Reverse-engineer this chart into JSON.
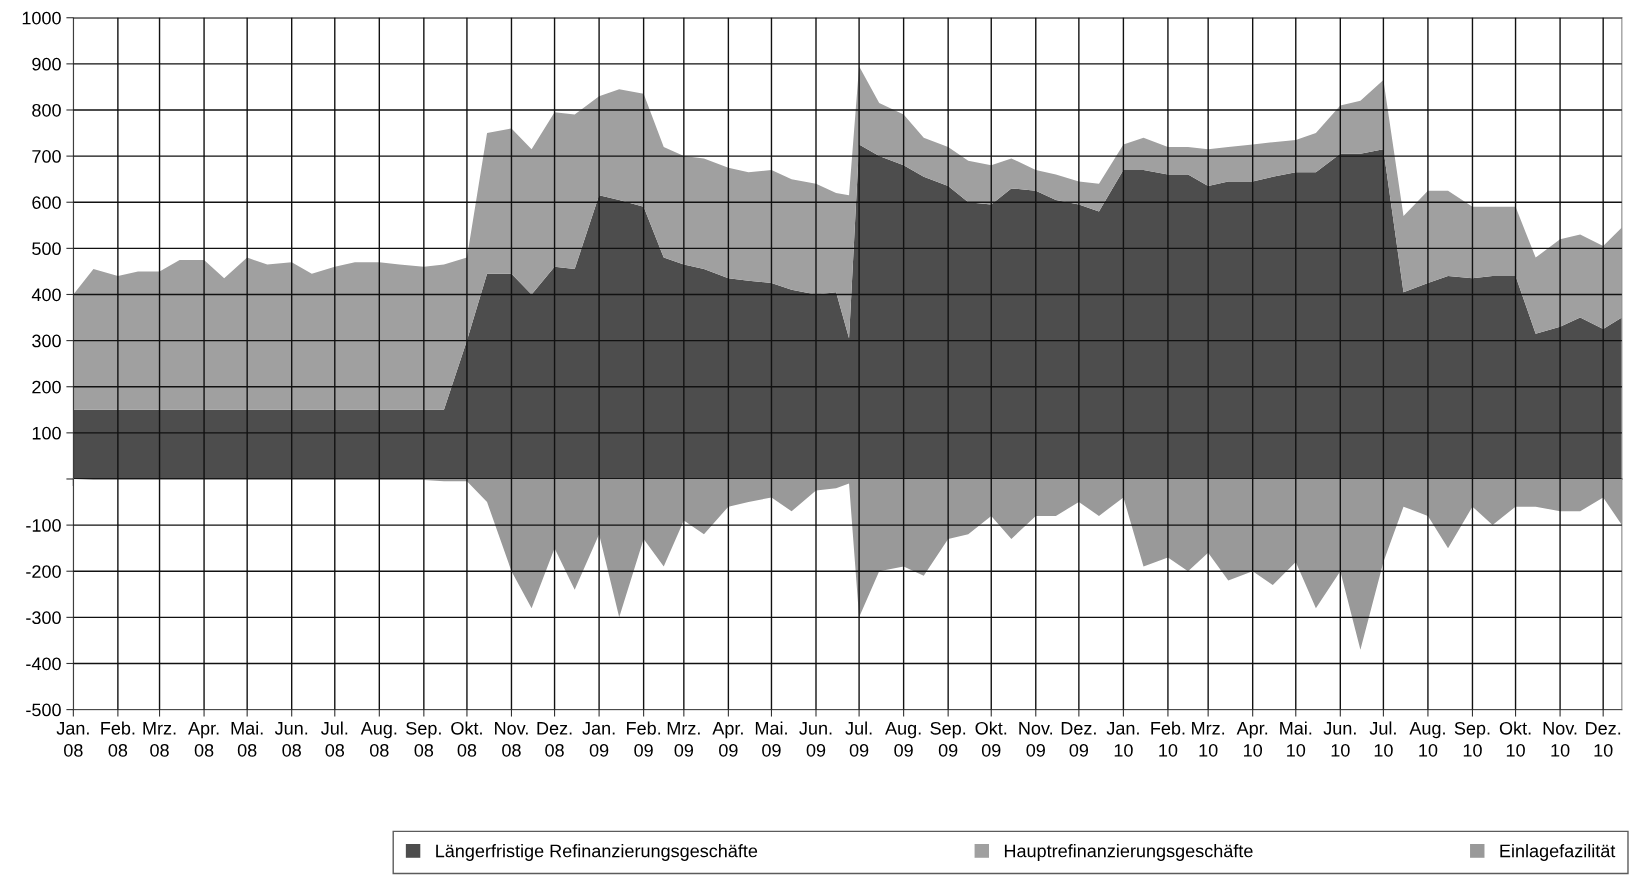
{
  "chart_data": [
    {
      "type": "area",
      "stacked": true,
      "x": [
        "2008-01-01",
        "2008-01-15",
        "2008-02-01",
        "2008-02-15",
        "2008-03-01",
        "2008-03-15",
        "2008-04-01",
        "2008-04-15",
        "2008-05-01",
        "2008-05-15",
        "2008-06-01",
        "2008-06-15",
        "2008-07-01",
        "2008-07-15",
        "2008-08-01",
        "2008-08-15",
        "2008-09-01",
        "2008-09-15",
        "2008-10-01",
        "2008-10-15",
        "2008-11-01",
        "2008-11-15",
        "2008-12-01",
        "2008-12-15",
        "2009-01-01",
        "2009-01-15",
        "2009-02-01",
        "2009-02-15",
        "2009-03-01",
        "2009-03-15",
        "2009-04-01",
        "2009-04-15",
        "2009-05-01",
        "2009-05-15",
        "2009-06-01",
        "2009-06-15",
        "2009-06-24",
        "2009-07-01",
        "2009-07-15",
        "2009-08-01",
        "2009-08-15",
        "2009-09-01",
        "2009-09-15",
        "2009-10-01",
        "2009-10-15",
        "2009-11-01",
        "2009-11-15",
        "2009-12-01",
        "2009-12-15",
        "2010-01-01",
        "2010-01-15",
        "2010-02-01",
        "2010-02-15",
        "2010-03-01",
        "2010-03-15",
        "2010-04-01",
        "2010-04-15",
        "2010-05-01",
        "2010-05-15",
        "2010-06-01",
        "2010-06-15",
        "2010-07-01",
        "2010-07-15",
        "2010-08-01",
        "2010-08-15",
        "2010-09-01",
        "2010-09-15",
        "2010-10-01",
        "2010-10-15",
        "2010-11-01",
        "2010-11-15",
        "2010-12-01",
        "2010-12-14"
      ],
      "series": [
        {
          "name": "Längerfristige Refinanzierungsgeschäfte",
          "color": "#4d4d4d",
          "values": [
            150,
            150,
            150,
            150,
            150,
            150,
            150,
            150,
            150,
            150,
            150,
            150,
            150,
            150,
            150,
            150,
            150,
            150,
            300,
            445,
            445,
            400,
            460,
            455,
            615,
            605,
            590,
            480,
            465,
            455,
            435,
            430,
            425,
            410,
            400,
            405,
            305,
            725,
            700,
            680,
            655,
            635,
            600,
            595,
            630,
            625,
            605,
            595,
            580,
            670,
            670,
            660,
            660,
            635,
            645,
            645,
            655,
            665,
            665,
            705,
            705,
            715,
            405,
            425,
            440,
            435,
            440,
            440,
            315,
            330,
            350,
            325,
            350
          ]
        },
        {
          "name": "Hauptrefinanzierungsgeschäfte",
          "color": "#a0a0a0",
          "values": [
            250,
            305,
            290,
            300,
            300,
            325,
            325,
            285,
            330,
            315,
            320,
            295,
            310,
            320,
            320,
            315,
            310,
            315,
            180,
            305,
            315,
            315,
            335,
            335,
            215,
            240,
            245,
            240,
            235,
            240,
            240,
            235,
            245,
            240,
            240,
            215,
            310,
            170,
            115,
            110,
            85,
            85,
            90,
            85,
            65,
            45,
            55,
            50,
            60,
            55,
            70,
            60,
            60,
            80,
            75,
            80,
            75,
            70,
            85,
            105,
            115,
            150,
            165,
            200,
            185,
            155,
            150,
            150,
            165,
            190,
            180,
            180,
            195
          ]
        }
      ],
      "xlim": [
        "2008-01-01",
        "2010-12-14"
      ],
      "xticks": [
        "2008-01-01",
        "2008-02-01",
        "2008-03-01",
        "2008-04-01",
        "2008-05-01",
        "2008-06-01",
        "2008-07-01",
        "2008-08-01",
        "2008-09-01",
        "2008-10-01",
        "2008-11-01",
        "2008-12-01",
        "2009-01-01",
        "2009-02-01",
        "2009-03-01",
        "2009-04-01",
        "2009-05-01",
        "2009-06-01",
        "2009-07-01",
        "2009-08-01",
        "2009-09-01",
        "2009-10-01",
        "2009-11-01",
        "2009-12-01",
        "2010-01-01",
        "2010-02-01",
        "2010-03-01",
        "2010-04-01",
        "2010-05-01",
        "2010-06-01",
        "2010-07-01",
        "2010-08-01",
        "2010-09-01",
        "2010-10-01",
        "2010-11-01",
        "2010-12-01"
      ],
      "ylim": [
        0,
        1000
      ],
      "yticks": [
        {
          "value": 0,
          "label": null
        },
        100,
        200,
        300,
        400,
        500,
        600,
        700,
        800,
        900,
        1000
      ],
      "tick_labels": "y",
      "grid": true,
      "legend": "bottom"
    },
    {
      "type": "area",
      "x": [
        "2008-01-01",
        "2008-01-15",
        "2008-02-01",
        "2008-02-15",
        "2008-03-01",
        "2008-03-15",
        "2008-04-01",
        "2008-04-15",
        "2008-05-01",
        "2008-05-15",
        "2008-06-01",
        "2008-06-15",
        "2008-07-01",
        "2008-07-15",
        "2008-08-01",
        "2008-08-15",
        "2008-09-01",
        "2008-09-15",
        "2008-10-01",
        "2008-10-15",
        "2008-11-01",
        "2008-11-15",
        "2008-12-01",
        "2008-12-15",
        "2009-01-01",
        "2009-01-15",
        "2009-02-01",
        "2009-02-15",
        "2009-03-01",
        "2009-03-15",
        "2009-04-01",
        "2009-04-15",
        "2009-05-01",
        "2009-05-15",
        "2009-06-01",
        "2009-06-15",
        "2009-06-24",
        "2009-07-01",
        "2009-07-15",
        "2009-08-01",
        "2009-08-15",
        "2009-09-01",
        "2009-09-15",
        "2009-10-01",
        "2009-10-15",
        "2009-11-01",
        "2009-11-15",
        "2009-12-01",
        "2009-12-15",
        "2010-01-01",
        "2010-01-15",
        "2010-02-01",
        "2010-02-15",
        "2010-03-01",
        "2010-03-15",
        "2010-04-01",
        "2010-04-15",
        "2010-05-01",
        "2010-05-15",
        "2010-06-01",
        "2010-06-15",
        "2010-07-01",
        "2010-07-15",
        "2010-08-01",
        "2010-08-15",
        "2010-09-01",
        "2010-09-15",
        "2010-10-01",
        "2010-10-15",
        "2010-11-01",
        "2010-11-15",
        "2010-12-01",
        "2010-12-14"
      ],
      "series": [
        {
          "name": "Einlagefazilität",
          "color": "#999999",
          "values": [
            0,
            -2,
            -2,
            -2,
            -2,
            -2,
            -2,
            -2,
            -2,
            -2,
            -2,
            -2,
            -2,
            -2,
            -2,
            -2,
            -2,
            -5,
            -5,
            -50,
            -200,
            -280,
            -150,
            -240,
            -120,
            -300,
            -130,
            -190,
            -90,
            -120,
            -60,
            -50,
            -40,
            -70,
            -25,
            -20,
            -10,
            -300,
            -200,
            -190,
            -210,
            -130,
            -120,
            -80,
            -130,
            -80,
            -80,
            -50,
            -80,
            -40,
            -190,
            -170,
            -200,
            -160,
            -220,
            -200,
            -230,
            -180,
            -280,
            -200,
            -370,
            -180,
            -60,
            -80,
            -150,
            -60,
            -100,
            -60,
            -60,
            -70,
            -70,
            -40,
            -100
          ]
        }
      ],
      "xlim": [
        "2008-01-01",
        "2010-12-14"
      ],
      "xticks": [
        {
          "value": "2008-01-01",
          "label": "Jan.\n08"
        },
        {
          "value": "2008-02-01",
          "label": "Feb.\n08"
        },
        {
          "value": "2008-03-01",
          "label": "Mrz.\n08"
        },
        {
          "value": "2008-04-01",
          "label": "Apr.\n08"
        },
        {
          "value": "2008-05-01",
          "label": "Mai.\n08"
        },
        {
          "value": "2008-06-01",
          "label": "Jun.\n08"
        },
        {
          "value": "2008-07-01",
          "label": "Jul.\n08"
        },
        {
          "value": "2008-08-01",
          "label": "Aug.\n08"
        },
        {
          "value": "2008-09-01",
          "label": "Sep.\n08"
        },
        {
          "value": "2008-10-01",
          "label": "Okt.\n08"
        },
        {
          "value": "2008-11-01",
          "label": "Nov.\n08"
        },
        {
          "value": "2008-12-01",
          "label": "Dez.\n08"
        },
        {
          "value": "2009-01-01",
          "label": "Jan.\n09"
        },
        {
          "value": "2009-02-01",
          "label": "Feb.\n09"
        },
        {
          "value": "2009-03-01",
          "label": "Mrz.\n09"
        },
        {
          "value": "2009-04-01",
          "label": "Apr.\n09"
        },
        {
          "value": "2009-05-01",
          "label": "Mai.\n09"
        },
        {
          "value": "2009-06-01",
          "label": "Jun.\n09"
        },
        {
          "value": "2009-07-01",
          "label": "Jul.\n09"
        },
        {
          "value": "2009-08-01",
          "label": "Aug.\n09"
        },
        {
          "value": "2009-09-01",
          "label": "Sep.\n09"
        },
        {
          "value": "2009-10-01",
          "label": "Okt.\n09"
        },
        {
          "value": "2009-11-01",
          "label": "Nov.\n09"
        },
        {
          "value": "2009-12-01",
          "label": "Dez.\n09"
        },
        {
          "value": "2010-01-01",
          "label": "Jan.\n10"
        },
        {
          "value": "2010-02-01",
          "label": "Feb.\n10"
        },
        {
          "value": "2010-03-01",
          "label": "Mrz.\n10"
        },
        {
          "value": "2010-04-01",
          "label": "Apr.\n10"
        },
        {
          "value": "2010-05-01",
          "label": "Mai.\n10"
        },
        {
          "value": "2010-06-01",
          "label": "Jun.\n10"
        },
        {
          "value": "2010-07-01",
          "label": "Jul.\n10"
        },
        {
          "value": "2010-08-01",
          "label": "Aug.\n10"
        },
        {
          "value": "2010-09-01",
          "label": "Sep.\n10"
        },
        {
          "value": "2010-10-01",
          "label": "Okt.\n10"
        },
        {
          "value": "2010-11-01",
          "label": "Nov.\n10"
        },
        {
          "value": "2010-12-01",
          "label": "Dez.\n10"
        }
      ],
      "ylim": [
        -500,
        0
      ],
      "yticks": [
        -500,
        -400,
        -300,
        -200,
        -100
      ],
      "grid": true,
      "legend": "bottom"
    }
  ]
}
